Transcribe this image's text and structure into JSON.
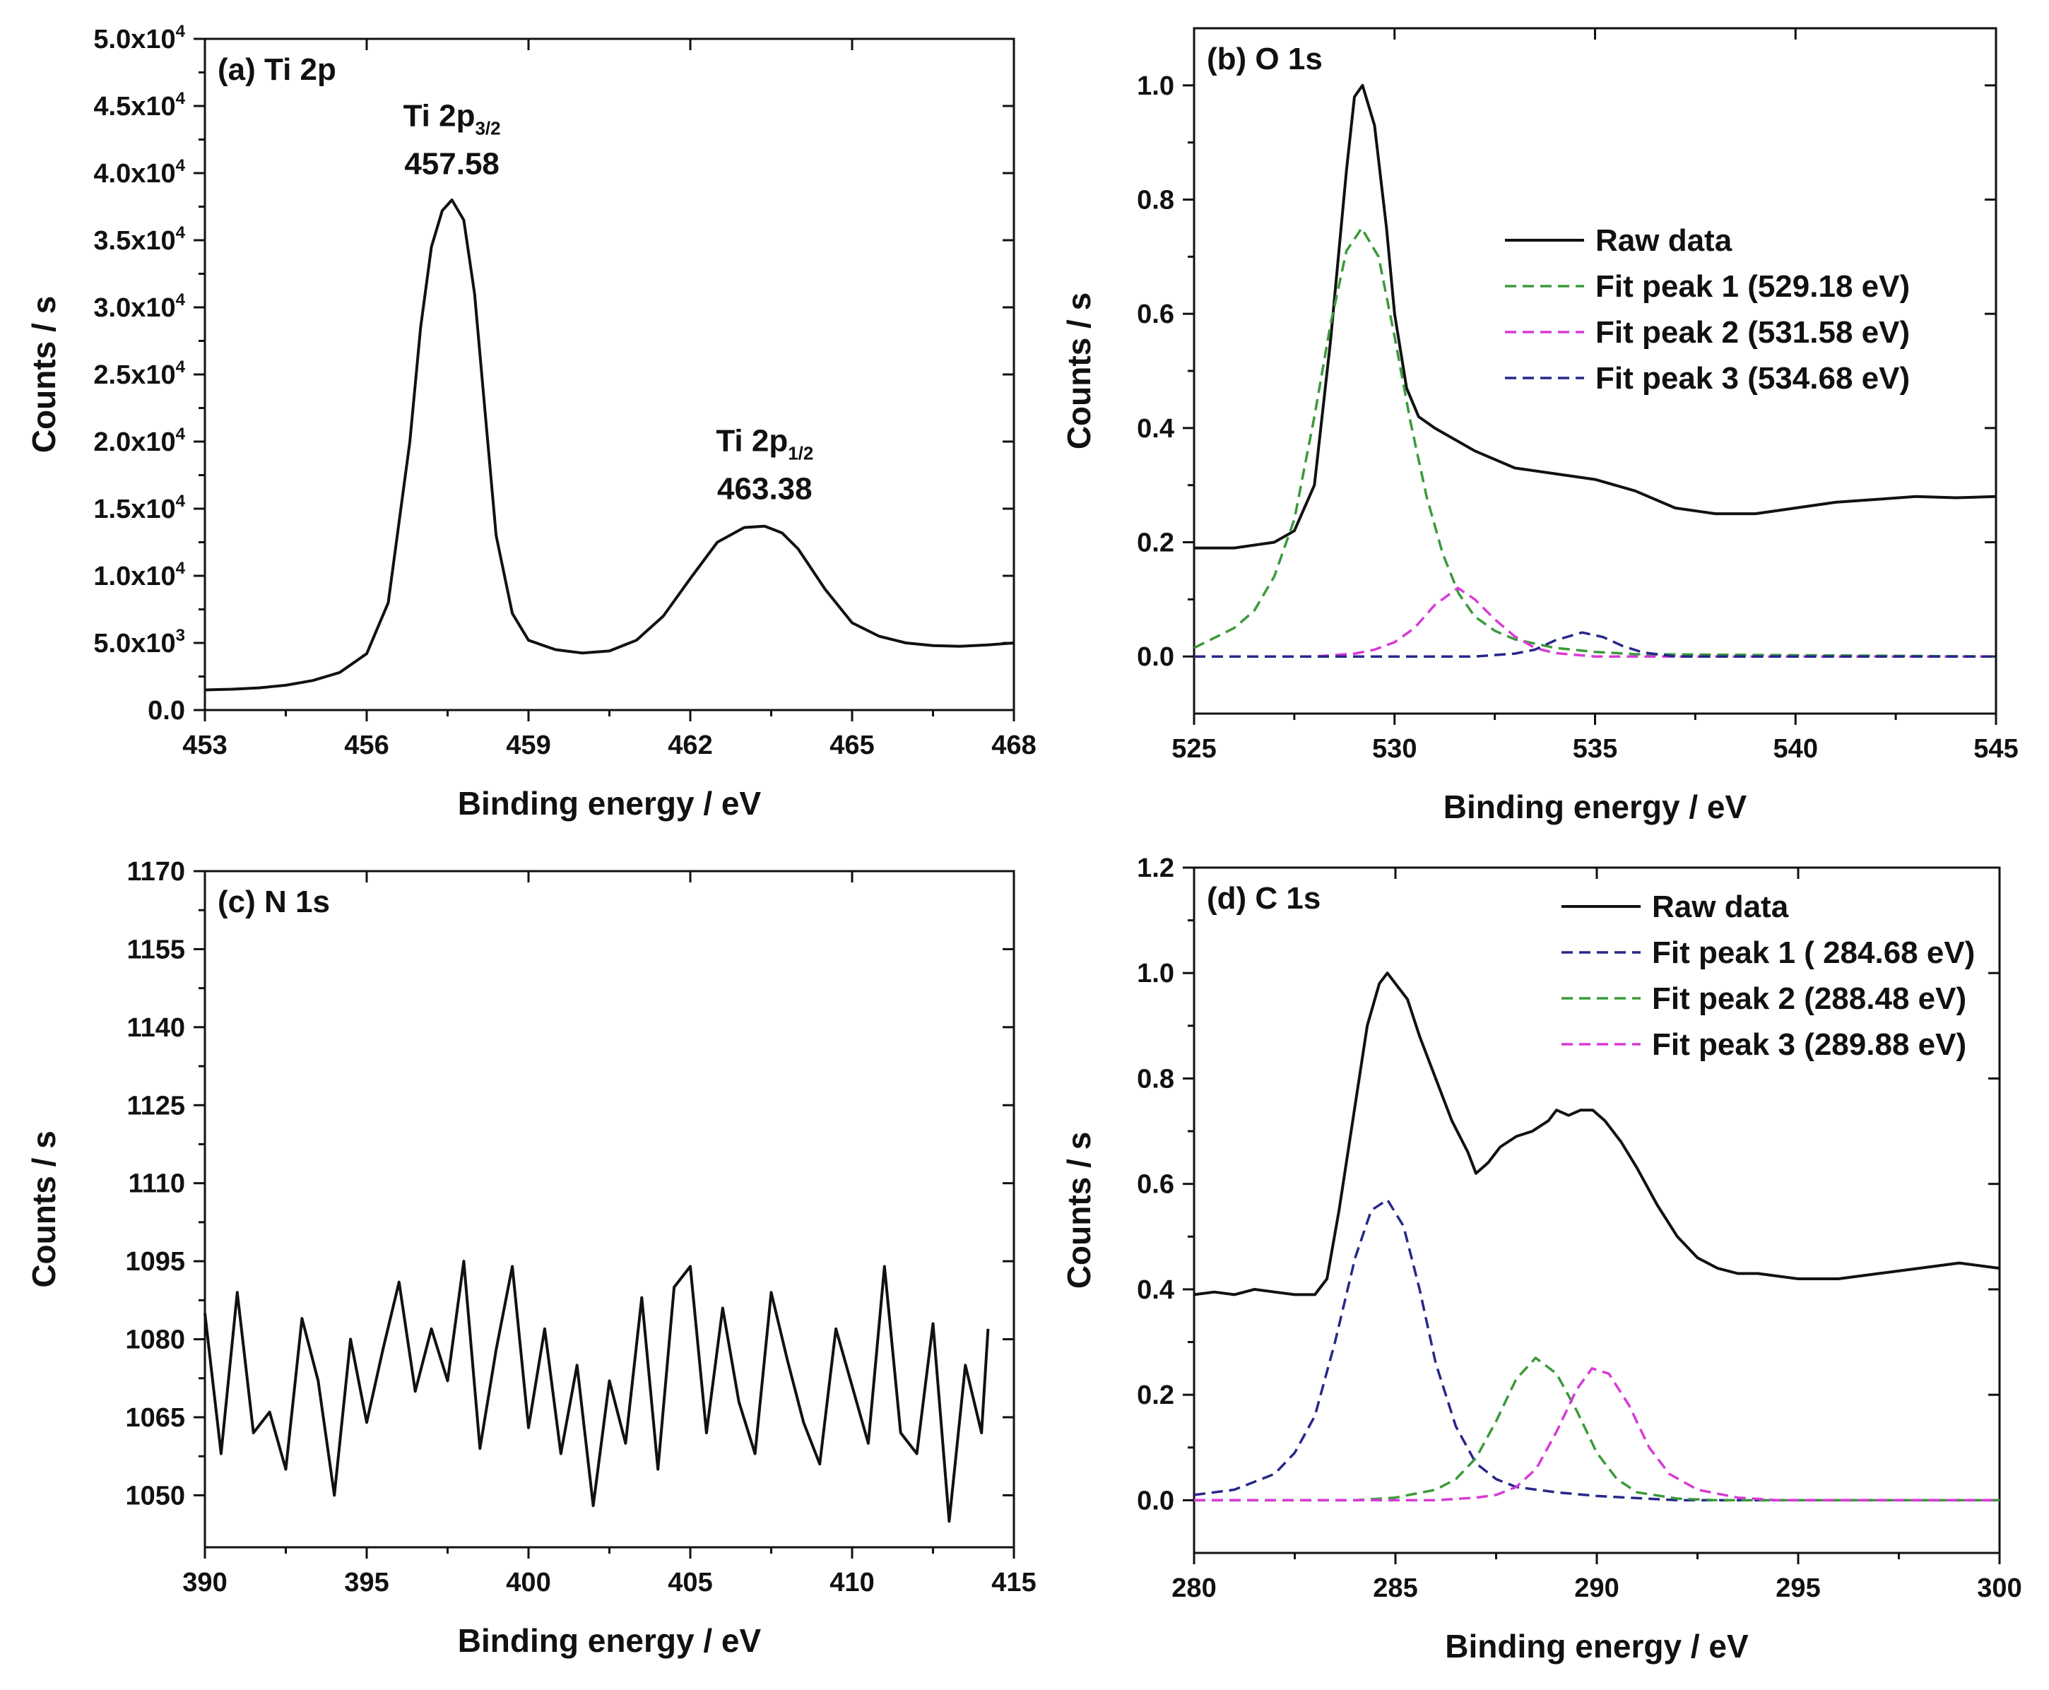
{
  "figure": {
    "colors": {
      "raw": "#111111",
      "green": "#3a9a3a",
      "magenta": "#d83ad8",
      "navy": "#27278a"
    }
  },
  "chart_data": [
    {
      "id": "a",
      "type": "line",
      "panel_label": "(a) Ti 2p",
      "xlabel": "Binding energy / eV",
      "ylabel": "Counts / s",
      "xlim": [
        453,
        468
      ],
      "ylim": [
        0,
        50000
      ],
      "xticks": [
        453,
        456,
        459,
        462,
        465,
        468
      ],
      "xtick_labels": [
        "453",
        "456",
        "459",
        "462",
        "465",
        "468"
      ],
      "yticks": [
        0,
        5000,
        10000,
        15000,
        20000,
        25000,
        30000,
        35000,
        40000,
        45000,
        50000
      ],
      "ytick_labels": [
        {
          "base": "0.0",
          "exp": ""
        },
        {
          "base": "5.0x10",
          "exp": "3"
        },
        {
          "base": "1.0x10",
          "exp": "4"
        },
        {
          "base": "1.5x10",
          "exp": "4"
        },
        {
          "base": "2.0x10",
          "exp": "4"
        },
        {
          "base": "2.5x10",
          "exp": "4"
        },
        {
          "base": "3.0x10",
          "exp": "4"
        },
        {
          "base": "3.5x10",
          "exp": "4"
        },
        {
          "base": "4.0x10",
          "exp": "4"
        },
        {
          "base": "4.5x10",
          "exp": "4"
        },
        {
          "base": "5.0x10",
          "exp": "4"
        }
      ],
      "annotations": [
        {
          "label_main": "Ti 2p",
          "label_sub": "3/2",
          "value": "457.58",
          "x": 457.58,
          "y": 43500
        },
        {
          "label_main": "Ti 2p",
          "label_sub": "1/2",
          "value": "463.38",
          "x": 463.38,
          "y": 19300
        }
      ],
      "series": [
        {
          "name": "Raw data",
          "style": "solid",
          "color": "raw",
          "x": [
            453.0,
            453.5,
            454.0,
            454.5,
            455.0,
            455.5,
            456.0,
            456.4,
            456.8,
            457.0,
            457.2,
            457.4,
            457.58,
            457.8,
            458.0,
            458.2,
            458.4,
            458.7,
            459.0,
            459.5,
            460.0,
            460.5,
            461.0,
            461.5,
            462.0,
            462.5,
            463.0,
            463.38,
            463.7,
            464.0,
            464.5,
            465.0,
            465.5,
            466.0,
            466.5,
            467.0,
            467.5,
            468.0
          ],
          "values": [
            1500,
            1550,
            1650,
            1850,
            2200,
            2800,
            4200,
            8000,
            20000,
            28500,
            34500,
            37200,
            38000,
            36500,
            31000,
            22000,
            13000,
            7200,
            5200,
            4500,
            4250,
            4400,
            5200,
            7000,
            9800,
            12500,
            13600,
            13700,
            13200,
            12000,
            9000,
            6500,
            5500,
            5000,
            4800,
            4750,
            4850,
            5000
          ]
        }
      ]
    },
    {
      "id": "b",
      "type": "line",
      "panel_label": "(b) O 1s",
      "xlabel": "Binding energy / eV",
      "ylabel": "Counts / s",
      "xlim": [
        525,
        545
      ],
      "ylim": [
        -0.1,
        1.1
      ],
      "xticks": [
        525,
        530,
        535,
        540,
        545
      ],
      "xtick_labels": [
        "525",
        "530",
        "535",
        "540",
        "545"
      ],
      "yticks": [
        0.0,
        0.2,
        0.4,
        0.6,
        0.8,
        1.0
      ],
      "ytick_labels": [
        "0.0",
        "0.2",
        "0.4",
        "0.6",
        "0.8",
        "1.0"
      ],
      "legend_position": "top-right",
      "series": [
        {
          "name": "Raw data",
          "style": "solid",
          "color": "raw",
          "x": [
            525.0,
            526.0,
            527.0,
            527.5,
            528.0,
            528.4,
            528.8,
            529.0,
            529.2,
            529.5,
            529.8,
            530.0,
            530.3,
            530.6,
            531.0,
            531.5,
            532.0,
            533.0,
            534.0,
            535.0,
            536.0,
            537.0,
            538.0,
            539.0,
            540.0,
            541.0,
            542.0,
            543.0,
            544.0,
            545.0
          ],
          "values": [
            0.19,
            0.19,
            0.2,
            0.22,
            0.3,
            0.55,
            0.85,
            0.98,
            1.0,
            0.93,
            0.75,
            0.6,
            0.47,
            0.42,
            0.4,
            0.38,
            0.36,
            0.33,
            0.32,
            0.31,
            0.29,
            0.26,
            0.25,
            0.25,
            0.26,
            0.27,
            0.275,
            0.28,
            0.278,
            0.28
          ]
        },
        {
          "name": "Fit peak 1 (529.18 eV)",
          "style": "dash",
          "color": "green",
          "x": [
            525.0,
            526.0,
            526.5,
            527.0,
            527.5,
            528.0,
            528.4,
            528.8,
            529.18,
            529.6,
            530.0,
            530.4,
            530.8,
            531.2,
            531.6,
            532.0,
            532.5,
            533.0,
            534.0,
            535.0,
            536.0,
            545.0
          ],
          "values": [
            0.015,
            0.05,
            0.08,
            0.14,
            0.24,
            0.42,
            0.58,
            0.71,
            0.75,
            0.7,
            0.56,
            0.41,
            0.28,
            0.18,
            0.11,
            0.07,
            0.045,
            0.03,
            0.015,
            0.008,
            0.004,
            0.0
          ]
        },
        {
          "name": "Fit peak 2 (531.58 eV)",
          "style": "dash",
          "color": "magenta",
          "x": [
            525.0,
            528.0,
            529.0,
            529.5,
            530.0,
            530.5,
            531.0,
            531.58,
            532.0,
            532.5,
            533.0,
            533.5,
            534.0,
            535.0,
            545.0
          ],
          "values": [
            0.0,
            0.0,
            0.005,
            0.012,
            0.025,
            0.05,
            0.09,
            0.12,
            0.1,
            0.065,
            0.035,
            0.015,
            0.006,
            0.0,
            0.0
          ]
        },
        {
          "name": "Fit peak 3 (534.68 eV)",
          "style": "dash",
          "color": "navy",
          "x": [
            525.0,
            532.0,
            533.0,
            533.5,
            534.0,
            534.68,
            535.2,
            535.7,
            536.2,
            537.0,
            545.0
          ],
          "values": [
            0.0,
            0.0,
            0.005,
            0.012,
            0.028,
            0.042,
            0.034,
            0.018,
            0.007,
            0.0,
            0.0
          ]
        }
      ]
    },
    {
      "id": "c",
      "type": "line",
      "panel_label": "(c) N 1s",
      "xlabel": "Binding energy / eV",
      "ylabel": "Counts / s",
      "xlim": [
        390,
        415
      ],
      "ylim": [
        1040,
        1170
      ],
      "xticks": [
        390,
        395,
        400,
        405,
        410,
        415
      ],
      "xtick_labels": [
        "390",
        "395",
        "400",
        "405",
        "410",
        "415"
      ],
      "yticks": [
        1050,
        1065,
        1080,
        1095,
        1110,
        1125,
        1140,
        1155,
        1170
      ],
      "ytick_labels": [
        "1050",
        "1065",
        "1080",
        "1095",
        "1110",
        "1125",
        "1140",
        "1155",
        "1170"
      ],
      "series": [
        {
          "name": "Raw data",
          "style": "solid",
          "color": "raw",
          "x": [
            390.0,
            390.5,
            391.0,
            391.5,
            392.0,
            392.5,
            393.0,
            393.5,
            394.0,
            394.5,
            395.0,
            395.5,
            396.0,
            396.5,
            397.0,
            397.5,
            398.0,
            398.5,
            399.0,
            399.5,
            400.0,
            400.5,
            401.0,
            401.5,
            402.0,
            402.5,
            403.0,
            403.5,
            404.0,
            404.5,
            405.0,
            405.5,
            406.0,
            406.5,
            407.0,
            407.5,
            408.0,
            408.5,
            409.0,
            409.5,
            410.0,
            410.5,
            411.0,
            411.5,
            412.0,
            412.5,
            413.0,
            413.5,
            414.0,
            414.2
          ],
          "values": [
            1085,
            1058,
            1089,
            1062,
            1066,
            1055,
            1084,
            1072,
            1050,
            1080,
            1064,
            1078,
            1091,
            1070,
            1082,
            1072,
            1095,
            1059,
            1078,
            1094,
            1063,
            1082,
            1058,
            1075,
            1048,
            1072,
            1060,
            1088,
            1055,
            1090,
            1094,
            1062,
            1086,
            1068,
            1058,
            1089,
            1076,
            1064,
            1056,
            1082,
            1071,
            1060,
            1094,
            1062,
            1058,
            1083,
            1045,
            1075,
            1062,
            1082
          ]
        }
      ]
    },
    {
      "id": "d",
      "type": "line",
      "panel_label": "(d) C 1s",
      "xlabel": "Binding energy / eV",
      "ylabel": "Counts / s",
      "xlim": [
        280,
        300
      ],
      "ylim": [
        -0.1,
        1.2
      ],
      "xticks": [
        280,
        285,
        290,
        295,
        300
      ],
      "xtick_labels": [
        "280",
        "285",
        "290",
        "295",
        "300"
      ],
      "yticks": [
        0.0,
        0.2,
        0.4,
        0.6,
        0.8,
        1.0,
        1.2
      ],
      "ytick_labels": [
        "0.0",
        "0.2",
        "0.4",
        "0.6",
        "0.8",
        "1.0",
        "1.2"
      ],
      "legend_position": "top-right",
      "series": [
        {
          "name": "Raw data",
          "style": "solid",
          "color": "raw",
          "x": [
            280.0,
            280.5,
            281.0,
            281.5,
            282.0,
            282.5,
            283.0,
            283.3,
            283.6,
            284.0,
            284.3,
            284.6,
            284.8,
            285.0,
            285.3,
            285.6,
            286.0,
            286.4,
            286.8,
            287.0,
            287.3,
            287.6,
            288.0,
            288.4,
            288.8,
            289.0,
            289.3,
            289.6,
            289.9,
            290.2,
            290.6,
            291.0,
            291.5,
            292.0,
            292.5,
            293.0,
            293.5,
            294.0,
            295.0,
            296.0,
            297.0,
            298.0,
            299.0,
            300.0
          ],
          "values": [
            0.39,
            0.395,
            0.39,
            0.4,
            0.395,
            0.39,
            0.39,
            0.42,
            0.55,
            0.75,
            0.9,
            0.98,
            1.0,
            0.98,
            0.95,
            0.88,
            0.8,
            0.72,
            0.66,
            0.62,
            0.64,
            0.67,
            0.69,
            0.7,
            0.72,
            0.74,
            0.73,
            0.74,
            0.74,
            0.72,
            0.68,
            0.63,
            0.56,
            0.5,
            0.46,
            0.44,
            0.43,
            0.43,
            0.42,
            0.42,
            0.43,
            0.44,
            0.45,
            0.44
          ]
        },
        {
          "name": "Fit peak 1 ( 284.68 eV)",
          "style": "dash",
          "color": "navy",
          "x": [
            280.0,
            281.0,
            282.0,
            282.5,
            283.0,
            283.5,
            284.0,
            284.4,
            284.8,
            285.2,
            285.6,
            286.0,
            286.5,
            287.0,
            287.5,
            288.0,
            289.0,
            290.0,
            292.0,
            300.0
          ],
          "values": [
            0.01,
            0.02,
            0.05,
            0.09,
            0.16,
            0.3,
            0.46,
            0.55,
            0.57,
            0.52,
            0.4,
            0.26,
            0.14,
            0.07,
            0.04,
            0.025,
            0.015,
            0.008,
            0.0,
            0.0
          ]
        },
        {
          "name": "Fit peak 2 (288.48 eV)",
          "style": "dash",
          "color": "green",
          "x": [
            280.0,
            284.0,
            285.0,
            286.0,
            286.5,
            287.0,
            287.5,
            288.0,
            288.48,
            289.0,
            289.5,
            290.0,
            290.5,
            291.0,
            292.0,
            293.0,
            300.0
          ],
          "values": [
            0.0,
            0.0,
            0.005,
            0.02,
            0.04,
            0.08,
            0.15,
            0.23,
            0.27,
            0.24,
            0.17,
            0.09,
            0.04,
            0.015,
            0.003,
            0.0,
            0.0
          ]
        },
        {
          "name": "Fit peak 3 (289.88 eV)",
          "style": "dash",
          "color": "magenta",
          "x": [
            280.0,
            286.0,
            287.0,
            287.5,
            288.0,
            288.5,
            289.0,
            289.5,
            289.88,
            290.3,
            290.8,
            291.3,
            291.8,
            292.5,
            293.5,
            294.5,
            300.0
          ],
          "values": [
            0.0,
            0.0,
            0.005,
            0.01,
            0.025,
            0.06,
            0.13,
            0.21,
            0.25,
            0.24,
            0.18,
            0.1,
            0.05,
            0.02,
            0.005,
            0.0,
            0.0
          ]
        }
      ]
    }
  ]
}
